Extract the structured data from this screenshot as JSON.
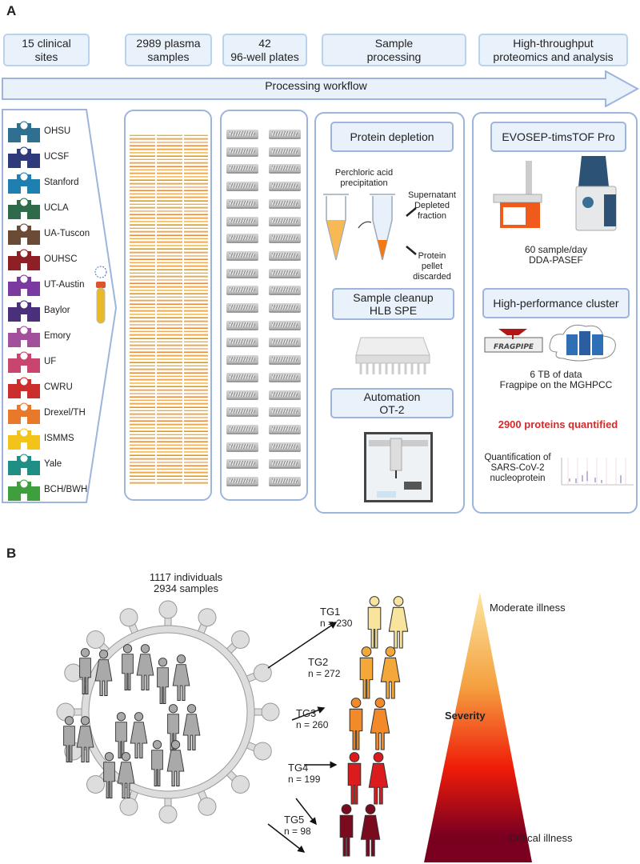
{
  "panel_a": {
    "letter": "A",
    "headers": [
      "15 clinical\nsites",
      "2989 plasma\nsamples",
      "42\n96-well plates",
      "Sample\nprocessing",
      "High-throughput\nproteomics and analysis"
    ],
    "workflow_arrow": "Processing workflow",
    "sites": [
      {
        "name": "OHSU",
        "color": "#2f6f8f"
      },
      {
        "name": "UCSF",
        "color": "#2e3a7a"
      },
      {
        "name": "Stanford",
        "color": "#1f7fb0"
      },
      {
        "name": "UCLA",
        "color": "#2f6b4a"
      },
      {
        "name": "UA-Tuscon",
        "color": "#6b4a36"
      },
      {
        "name": "OUHSC",
        "color": "#8e1f24"
      },
      {
        "name": "UT-Austin",
        "color": "#7a3aa0"
      },
      {
        "name": "Baylor",
        "color": "#4a2f7a"
      },
      {
        "name": "Emory",
        "color": "#a3509c"
      },
      {
        "name": "UF",
        "color": "#c9456f"
      },
      {
        "name": "CWRU",
        "color": "#cc2e2e"
      },
      {
        "name": "Drexel/TH",
        "color": "#e8782a"
      },
      {
        "name": "ISMMS",
        "color": "#f2c318"
      },
      {
        "name": "Yale",
        "color": "#1f8f86"
      },
      {
        "name": "BCH/BWH",
        "color": "#3f9f3f"
      }
    ],
    "processing": {
      "protein_depletion": "Protein depletion",
      "perchloric": "Perchloric acid\nprecipitation",
      "supernatant": "Supernatant\nDepleted\nfraction",
      "pellet": "Protein\npellet\ndiscarded",
      "cleanup": "Sample cleanup\nHLB SPE",
      "automation": "Automation\nOT-2"
    },
    "analysis": {
      "instrument": "EVOSEP-timsTOF Pro",
      "throughput": "60 sample/day\nDDA-PASEF",
      "cluster": "High-performance cluster",
      "fragpipe_logo": "FRAGPIPE",
      "data": "6 TB of data\nFragpipe on the MGHPCC",
      "proteins": "2900 proteins quantified",
      "proteins_color": "#d42a2a",
      "quant": "Quantification of\nSARS-CoV-2\nnucleoprotein"
    }
  },
  "panel_b": {
    "letter": "B",
    "cohort": "1117 individuals\n2934 samples",
    "groups": [
      {
        "label": "TG1",
        "n": "n = 230",
        "color": "#f8e49c"
      },
      {
        "label": "TG2",
        "n": "n = 272",
        "color": "#f5a83a"
      },
      {
        "label": "TG3",
        "n": "n = 260",
        "color": "#f28a2a"
      },
      {
        "label": "TG4",
        "n": "n = 199",
        "color": "#dc1c1c"
      },
      {
        "label": "TG5",
        "n": "n = 98",
        "color": "#7a0a1e"
      }
    ],
    "severity": "Severity",
    "moderate": "Moderate illness",
    "critical": "Critical illness"
  }
}
